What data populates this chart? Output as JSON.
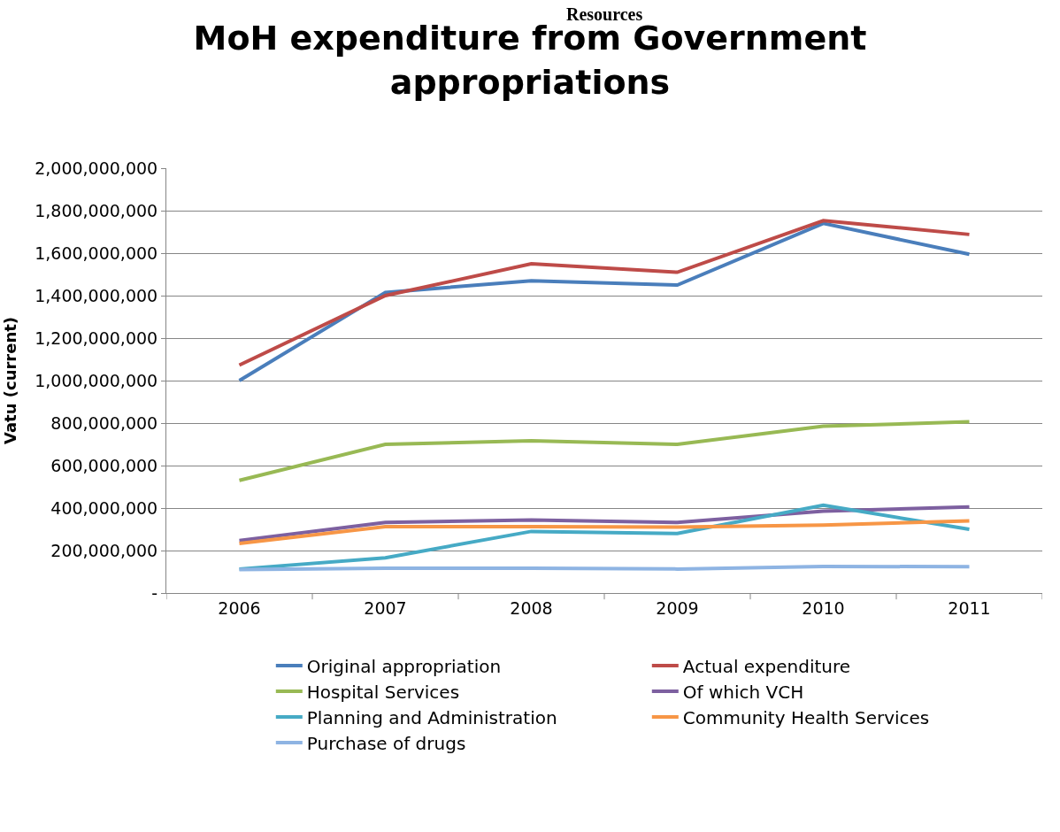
{
  "chart_data": {
    "type": "line",
    "title": "MoH expenditure from Government appropriations",
    "ylabel": "Vatu (current)",
    "annotations": [
      "Resources"
    ],
    "categories": [
      "2006",
      "2007",
      "2008",
      "2009",
      "2010",
      "2011"
    ],
    "series": [
      {
        "name": "Original appropriation",
        "color": "#4a7ebb",
        "values": [
          1000000000,
          1415000000,
          1470000000,
          1450000000,
          1740000000,
          1595000000
        ]
      },
      {
        "name": "Actual expenditure",
        "color": "#be4b48",
        "values": [
          1073000000,
          1400000000,
          1550000000,
          1510000000,
          1753000000,
          1688000000
        ]
      },
      {
        "name": "Hospital Services",
        "color": "#98b954",
        "values": [
          530000000,
          700000000,
          717000000,
          700000000,
          785000000,
          806000000
        ]
      },
      {
        "name": "Of which VCH",
        "color": "#7d60a0",
        "values": [
          247000000,
          332000000,
          344000000,
          332000000,
          385000000,
          405000000
        ]
      },
      {
        "name": "Planning and Administration",
        "color": "#46aac5",
        "values": [
          113000000,
          166000000,
          290000000,
          280000000,
          413000000,
          300000000
        ]
      },
      {
        "name": "Community Health Services",
        "color": "#f79646",
        "values": [
          233000000,
          312000000,
          312000000,
          310000000,
          320000000,
          340000000
        ]
      },
      {
        "name": "Purchase of drugs",
        "color": "#8eb4e3",
        "values": [
          110000000,
          117000000,
          117000000,
          113000000,
          125000000,
          124000000
        ]
      }
    ],
    "ylim": [
      0,
      2000000000
    ],
    "yticks": [
      {
        "value": 0,
        "label": "-"
      },
      {
        "value": 200000000,
        "label": "200,000,000"
      },
      {
        "value": 400000000,
        "label": "400,000,000"
      },
      {
        "value": 600000000,
        "label": "600,000,000"
      },
      {
        "value": 800000000,
        "label": "800,000,000"
      },
      {
        "value": 1000000000,
        "label": "1,000,000,000"
      },
      {
        "value": 1200000000,
        "label": "1,200,000,000"
      },
      {
        "value": 1400000000,
        "label": "1,400,000,000"
      },
      {
        "value": 1600000000,
        "label": "1,600,000,000"
      },
      {
        "value": 1800000000,
        "label": "1,800,000,000"
      },
      {
        "value": 2000000000,
        "label": "2,000,000,000"
      }
    ],
    "grid": "y",
    "legend": "bottom",
    "marker": "none",
    "line_style": "solid"
  }
}
